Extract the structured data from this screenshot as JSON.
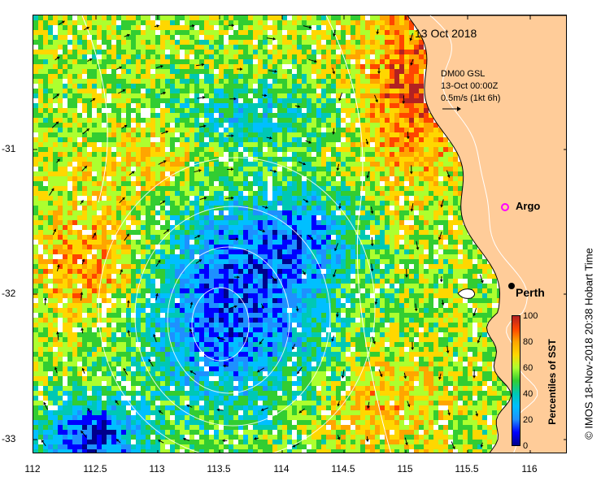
{
  "title": "13 Oct 2018",
  "current_model": {
    "name": "DM00 GSL",
    "time": "13-Oct 00:00Z",
    "scale": "0.5m/s (1kt 6h)"
  },
  "markers": {
    "argo": "Argo",
    "city": "Perth"
  },
  "axes": {
    "x_ticks": [
      "112",
      "112.5",
      "113",
      "113.5",
      "114",
      "114.5",
      "115",
      "115.5",
      "116"
    ],
    "y_ticks": [
      "-31",
      "-32",
      "-33"
    ]
  },
  "colorbar": {
    "title": "Percentiles of SST",
    "ticks": [
      "100",
      "80",
      "60",
      "40",
      "20",
      "0"
    ],
    "colors": [
      "#00008b",
      "#0000ff",
      "#1e90ff",
      "#00bfff",
      "#00c8b4",
      "#32cd32",
      "#adff2f",
      "#ffd700",
      "#ffa500",
      "#ff4500",
      "#b22222"
    ]
  },
  "credit": "© IMOS 18-Nov-2018 20:38 Hobart Time",
  "colors": {
    "land": "#ffcc99",
    "marker_argo": "#ff00ff",
    "marker_city": "#000000"
  }
}
